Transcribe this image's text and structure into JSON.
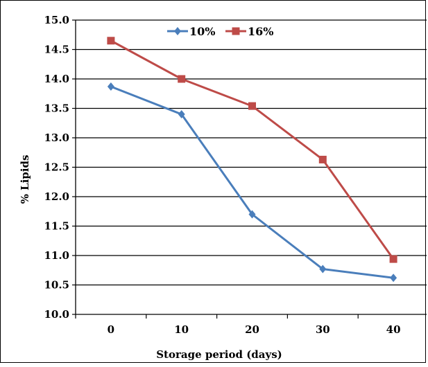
{
  "chart_data": {
    "type": "line",
    "title": "",
    "xlabel": "Storage period (days)",
    "ylabel": "% Lipids",
    "categories": [
      "0",
      "10",
      "20",
      "30",
      "40"
    ],
    "ylim": [
      10.0,
      15.0
    ],
    "yticks": [
      "10.0",
      "10.5",
      "11.0",
      "11.5",
      "12.0",
      "12.5",
      "13.0",
      "13.5",
      "14.0",
      "14.5",
      "15.0"
    ],
    "grid": true,
    "legend_position": "top-center",
    "series": [
      {
        "name": "10%",
        "color": "#4a7ebb",
        "marker": "diamond",
        "values": [
          13.87,
          13.4,
          11.7,
          10.77,
          10.62
        ]
      },
      {
        "name": "16%",
        "color": "#be4b48",
        "marker": "square",
        "values": [
          14.65,
          14.0,
          13.54,
          12.63,
          10.94
        ]
      }
    ]
  }
}
